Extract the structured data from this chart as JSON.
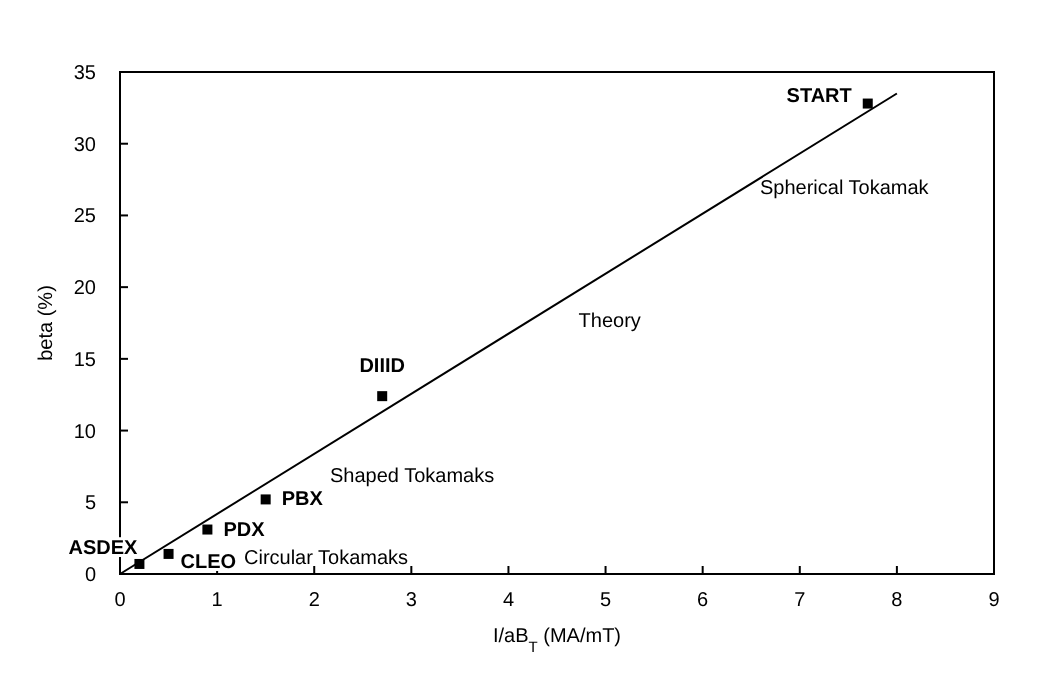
{
  "chart_data": {
    "type": "scatter",
    "xlabel": "I/aB$_{T}$ (MA/mT)",
    "ylabel": "beta (%)",
    "xlim": [
      0,
      9
    ],
    "ylim": [
      0,
      35
    ],
    "xticks": [
      0,
      1,
      2,
      3,
      4,
      5,
      6,
      7,
      8,
      9
    ],
    "yticks": [
      0,
      5,
      10,
      15,
      20,
      25,
      30,
      35
    ],
    "grid": false,
    "marker": "square",
    "series": [
      {
        "name": "START",
        "color": "#000000",
        "x": [
          7.7
        ],
        "values": [
          32.8
        ]
      },
      {
        "name": "DIIID",
        "color": "#000000",
        "x": [
          2.7
        ],
        "values": [
          12.4
        ]
      },
      {
        "name": "PBX",
        "color": "#000000",
        "x": [
          1.5
        ],
        "values": [
          5.2
        ]
      },
      {
        "name": "PDX",
        "color": "#000000",
        "x": [
          0.9
        ],
        "values": [
          3.1
        ]
      },
      {
        "name": "ASDEX",
        "color": "#000000",
        "x": [
          0.2
        ],
        "values": [
          0.7
        ]
      },
      {
        "name": "CLEO",
        "color": "#000000",
        "x": [
          0.5
        ],
        "values": [
          1.4
        ]
      },
      {
        "name": "Theory",
        "type": "line",
        "marker": "none",
        "color": "#000000",
        "line_style": "solid",
        "x": [
          0,
          8
        ],
        "values": [
          0,
          33.5
        ]
      }
    ],
    "annotations": [
      "Spherical Tokamak",
      "Shaped Tokamaks",
      "Circular Tokamaks"
    ]
  }
}
